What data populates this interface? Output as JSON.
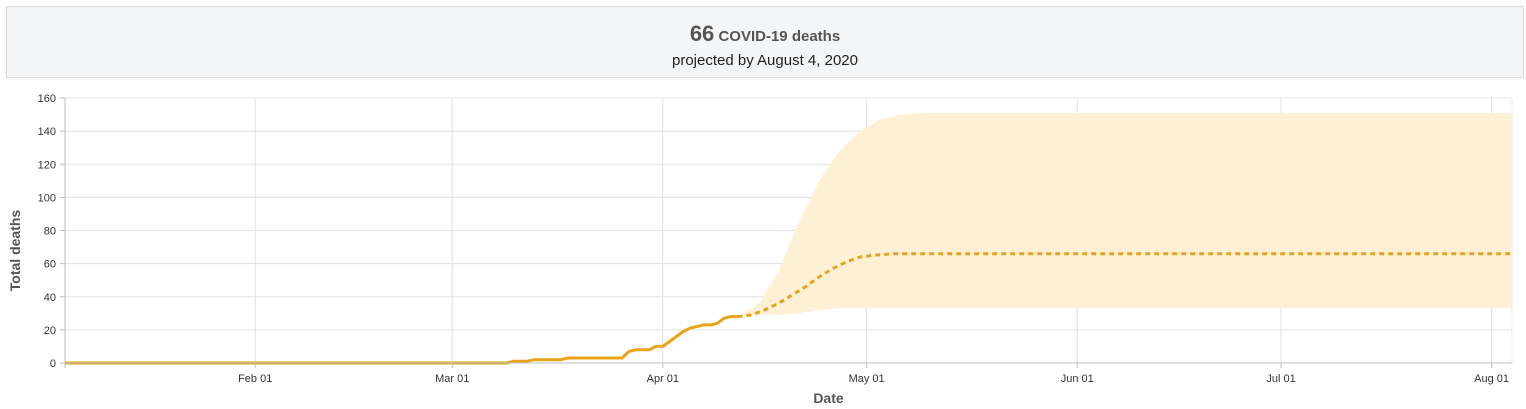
{
  "summary": {
    "value": "66",
    "unit": "COVID-19 deaths",
    "projection": "projected by August 4, 2020"
  },
  "chart_data": {
    "type": "line",
    "xlabel": "Date",
    "ylabel": "Total deaths",
    "xlim": [
      "2020-01-04",
      "2020-08-04"
    ],
    "ylim": [
      0,
      160
    ],
    "yticks": [
      0,
      20,
      40,
      60,
      80,
      100,
      120,
      140,
      160
    ],
    "xticks": [
      {
        "date": "2020-02-01",
        "label": "Feb 01"
      },
      {
        "date": "2020-03-01",
        "label": "Mar 01"
      },
      {
        "date": "2020-04-01",
        "label": "Apr 01"
      },
      {
        "date": "2020-05-01",
        "label": "May 01"
      },
      {
        "date": "2020-06-01",
        "label": "Jun 01"
      },
      {
        "date": "2020-07-01",
        "label": "Jul 01"
      },
      {
        "date": "2020-08-01",
        "label": "Aug 01"
      }
    ],
    "grid": true,
    "colors": {
      "line": "#e8a317",
      "band": "#fdf0d5",
      "grid": "#e0e0e0",
      "axis": "#bdbdbd",
      "text": "#555555"
    },
    "series": [
      {
        "style": "solid",
        "points": [
          [
            "2020-01-04",
            0
          ],
          [
            "2020-03-09",
            0
          ],
          [
            "2020-03-10",
            1
          ],
          [
            "2020-03-12",
            1
          ],
          [
            "2020-03-13",
            2
          ],
          [
            "2020-03-17",
            2
          ],
          [
            "2020-03-18",
            3
          ],
          [
            "2020-03-26",
            3
          ],
          [
            "2020-03-27",
            7
          ],
          [
            "2020-03-28",
            8
          ],
          [
            "2020-03-30",
            8
          ],
          [
            "2020-03-31",
            10
          ],
          [
            "2020-04-01",
            10
          ],
          [
            "2020-04-02",
            13
          ],
          [
            "2020-04-03",
            16
          ],
          [
            "2020-04-04",
            19
          ],
          [
            "2020-04-05",
            21
          ],
          [
            "2020-04-06",
            22
          ],
          [
            "2020-04-07",
            23
          ],
          [
            "2020-04-08",
            23
          ],
          [
            "2020-04-09",
            24
          ],
          [
            "2020-04-10",
            27
          ],
          [
            "2020-04-11",
            28
          ],
          [
            "2020-04-12",
            28
          ]
        ]
      },
      {
        "style": "dashed",
        "points": [
          [
            "2020-04-12",
            28
          ],
          [
            "2020-04-14",
            29
          ],
          [
            "2020-04-16",
            32
          ],
          [
            "2020-04-18",
            36
          ],
          [
            "2020-04-20",
            41
          ],
          [
            "2020-04-22",
            46
          ],
          [
            "2020-04-24",
            52
          ],
          [
            "2020-04-26",
            57
          ],
          [
            "2020-04-28",
            61
          ],
          [
            "2020-04-30",
            64
          ],
          [
            "2020-05-02",
            65
          ],
          [
            "2020-05-05",
            66
          ],
          [
            "2020-08-04",
            66
          ]
        ]
      }
    ],
    "uncertainty_band": {
      "upper": [
        [
          "2020-04-12",
          28
        ],
        [
          "2020-04-15",
          35
        ],
        [
          "2020-04-18",
          55
        ],
        [
          "2020-04-21",
          85
        ],
        [
          "2020-04-24",
          110
        ],
        [
          "2020-04-27",
          128
        ],
        [
          "2020-04-30",
          140
        ],
        [
          "2020-05-03",
          147
        ],
        [
          "2020-05-06",
          150
        ],
        [
          "2020-05-10",
          151
        ],
        [
          "2020-08-04",
          151
        ]
      ],
      "lower": [
        [
          "2020-04-12",
          28
        ],
        [
          "2020-04-15",
          29
        ],
        [
          "2020-04-18",
          29
        ],
        [
          "2020-04-21",
          30
        ],
        [
          "2020-04-24",
          32
        ],
        [
          "2020-04-27",
          33
        ],
        [
          "2020-05-01",
          33
        ],
        [
          "2020-08-04",
          33
        ]
      ]
    }
  }
}
